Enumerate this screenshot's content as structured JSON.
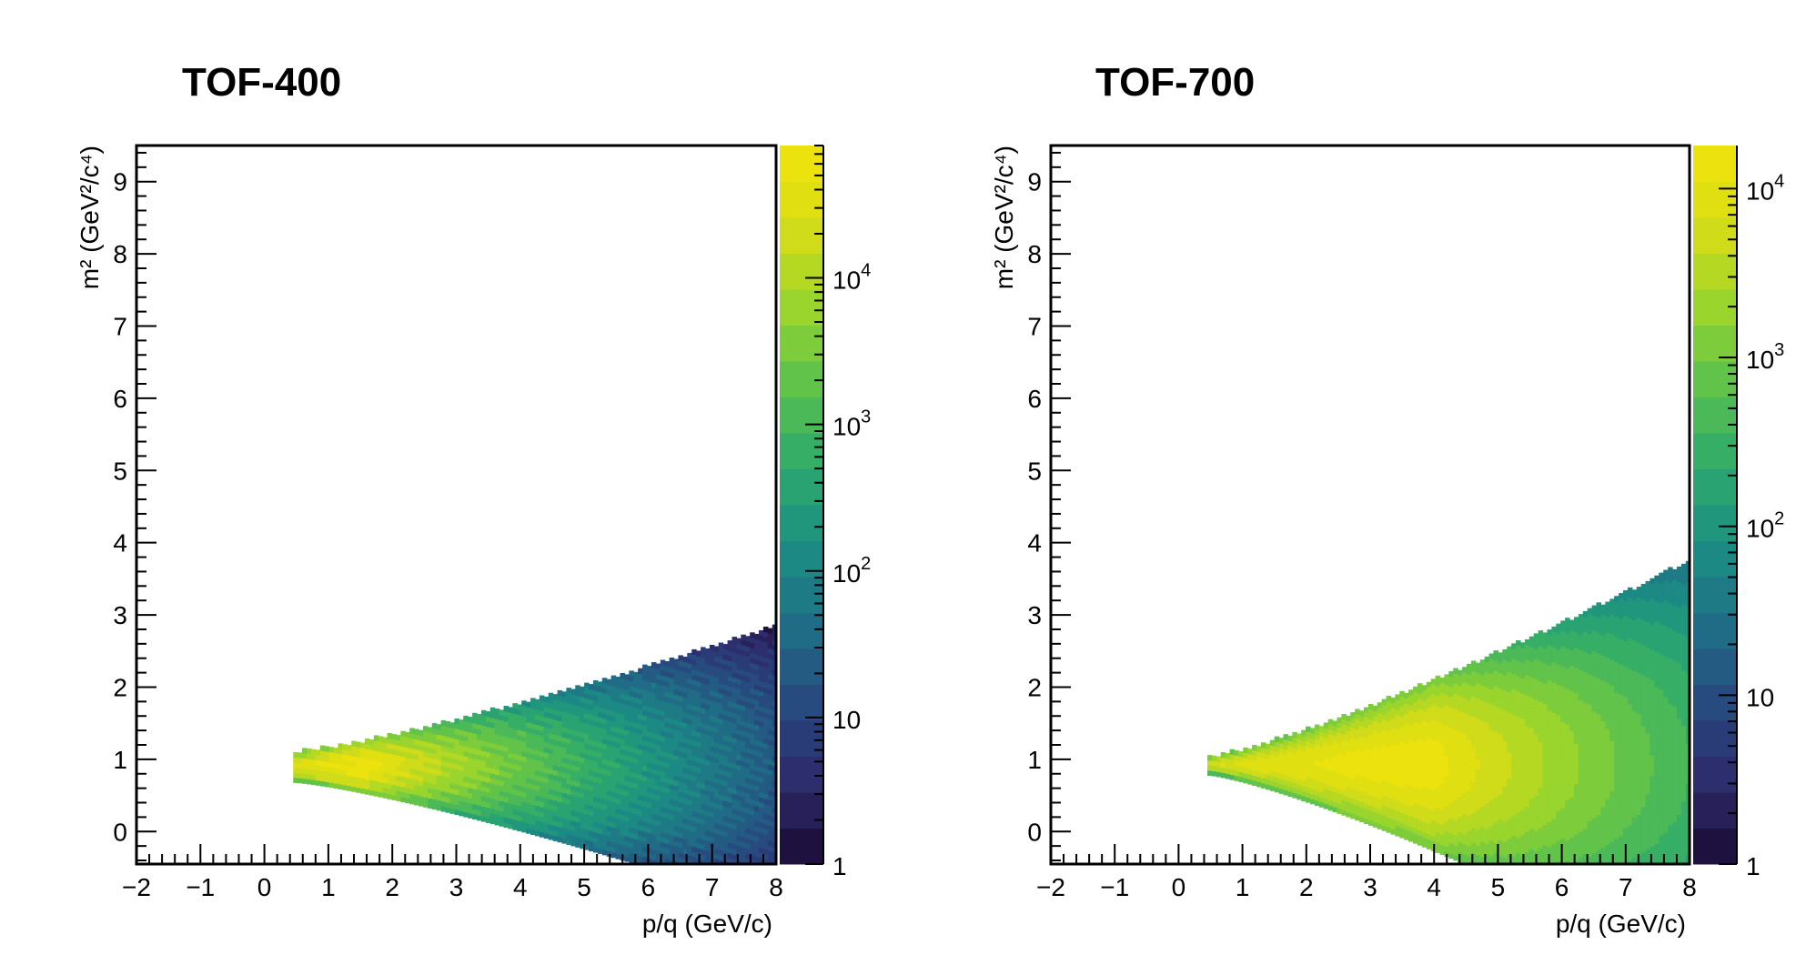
{
  "colors": {
    "frame": "#000000",
    "background": "#ffffff",
    "palette": "viridis",
    "palette_stops": [
      "#1a0a32",
      "#2e2a6b",
      "#27497f",
      "#1f6e86",
      "#1b8f83",
      "#2faa6c",
      "#5cc24c",
      "#9bd52c",
      "#d7dd16",
      "#f2e30a"
    ]
  },
  "chart_data": [
    {
      "type": "heatmap",
      "title": "TOF-400",
      "xlabel": "p/q (GeV/c)",
      "ylabel": "m² (GeV²/c⁴)",
      "xlim": [
        -2,
        8
      ],
      "ylim": [
        -0.45,
        9.5
      ],
      "xticks": [
        "−2",
        "−1",
        "0",
        "1",
        "2",
        "3",
        "4",
        "5",
        "6",
        "7",
        "8"
      ],
      "yticks": [
        "0",
        "1",
        "2",
        "3",
        "4",
        "5",
        "6",
        "7",
        "8",
        "9"
      ],
      "z_scale": "log",
      "zlim": [
        1,
        80000
      ],
      "z_ticks": [
        {
          "value": 1,
          "label": "1"
        },
        {
          "value": 10,
          "label": "10"
        },
        {
          "value": 100,
          "label": "10",
          "exp": "2"
        },
        {
          "value": 1000,
          "label": "10",
          "exp": "3"
        },
        {
          "value": 10000,
          "label": "10",
          "exp": "4"
        }
      ],
      "band": {
        "p_min": 0.45,
        "center_m2": 0.88,
        "half_width_at_p_min": 0.2,
        "half_width_at_p_max": 1.95,
        "p_max": 8,
        "peak_p": 1.6,
        "peak_count": 60000,
        "count_at_p_max": 20
      }
    },
    {
      "type": "heatmap",
      "title": "TOF-700",
      "xlabel": "p/q (GeV/c)",
      "ylabel": "m² (GeV²/c⁴)",
      "xlim": [
        -2,
        8
      ],
      "ylim": [
        -0.45,
        9.5
      ],
      "xticks": [
        "−2",
        "−1",
        "0",
        "1",
        "2",
        "3",
        "4",
        "5",
        "6",
        "7",
        "8"
      ],
      "yticks": [
        "0",
        "1",
        "2",
        "3",
        "4",
        "5",
        "6",
        "7",
        "8",
        "9"
      ],
      "z_scale": "log",
      "zlim": [
        1,
        18000
      ],
      "z_ticks": [
        {
          "value": 1,
          "label": "1"
        },
        {
          "value": 10,
          "label": "10"
        },
        {
          "value": 100,
          "label": "10",
          "exp": "2"
        },
        {
          "value": 1000,
          "label": "10",
          "exp": "3"
        },
        {
          "value": 10000,
          "label": "10",
          "exp": "4"
        }
      ],
      "band": {
        "p_min": 0.45,
        "center_m2": 0.9,
        "half_width_at_p_min": 0.12,
        "half_width_at_p_max": 2.85,
        "p_max": 8,
        "peak_p": 4.0,
        "peak_count": 14000,
        "count_at_p_max": 350
      }
    }
  ]
}
